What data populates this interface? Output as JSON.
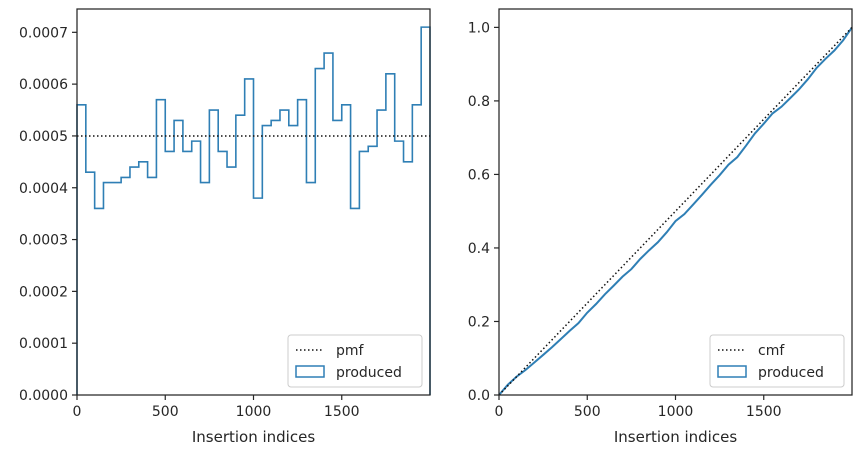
{
  "colors": {
    "produced": "#2f7fb5",
    "reference": "#111111",
    "axes": "#262626",
    "legend_border": "#cccccc"
  },
  "chart_data": [
    {
      "type": "line",
      "subtype": "step-histogram",
      "xlabel": "Insertion indices",
      "ylabel": "",
      "xlim": [
        0,
        2000
      ],
      "ylim": [
        0,
        0.000745
      ],
      "xticks": [
        0,
        500,
        1000,
        1500
      ],
      "xtick_labels": [
        "0",
        "500",
        "1000",
        "1500"
      ],
      "yticks": [
        0,
        0.0001,
        0.0002,
        0.0003,
        0.0004,
        0.0005,
        0.0006,
        0.0007
      ],
      "ytick_labels": [
        "0.0000",
        "0.0001",
        "0.0002",
        "0.0003",
        "0.0004",
        "0.0005",
        "0.0006",
        "0.0007"
      ],
      "grid": false,
      "legend_position": "lower-right",
      "series": [
        {
          "name": "pmf",
          "style": "dotted",
          "color": "#111111",
          "x": [
            0,
            2000
          ],
          "y": [
            0.0005,
            0.0005
          ]
        },
        {
          "name": "produced",
          "style": "step",
          "color": "#2f7fb5",
          "bin_edges": [
            0,
            50,
            100,
            150,
            200,
            250,
            300,
            350,
            400,
            450,
            500,
            550,
            600,
            650,
            700,
            750,
            800,
            850,
            900,
            950,
            1000,
            1050,
            1100,
            1150,
            1200,
            1250,
            1300,
            1350,
            1400,
            1450,
            1500,
            1550,
            1600,
            1650,
            1700,
            1750,
            1800,
            1850,
            1900,
            1950,
            2000
          ],
          "values": [
            0.00056,
            0.00043,
            0.00036,
            0.00041,
            0.00041,
            0.00042,
            0.00044,
            0.00045,
            0.00042,
            0.00057,
            0.00047,
            0.00053,
            0.00047,
            0.00049,
            0.00041,
            0.00055,
            0.00047,
            0.00044,
            0.00054,
            0.00061,
            0.00038,
            0.00052,
            0.00053,
            0.00055,
            0.00052,
            0.00057,
            0.00041,
            0.00063,
            0.00066,
            0.00053,
            0.00056,
            0.00036,
            0.00047,
            0.00048,
            0.00055,
            0.00062,
            0.00049,
            0.00045,
            0.00056,
            0.00071
          ]
        }
      ],
      "legend": [
        "pmf",
        "produced"
      ]
    },
    {
      "type": "line",
      "subtype": "cumulative",
      "xlabel": "Insertion indices",
      "ylabel": "",
      "xlim": [
        0,
        2000
      ],
      "ylim": [
        0,
        1.05
      ],
      "xticks": [
        0,
        500,
        1000,
        1500
      ],
      "xtick_labels": [
        "0",
        "500",
        "1000",
        "1500"
      ],
      "yticks": [
        0,
        0.2,
        0.4,
        0.6,
        0.8,
        1.0
      ],
      "ytick_labels": [
        "0.0",
        "0.2",
        "0.4",
        "0.6",
        "0.8",
        "1.0"
      ],
      "grid": false,
      "legend_position": "lower-right",
      "series": [
        {
          "name": "cmf",
          "style": "dotted",
          "color": "#111111",
          "x": [
            0,
            2000
          ],
          "y": [
            0,
            1.0
          ]
        },
        {
          "name": "produced",
          "style": "step",
          "color": "#2f7fb5",
          "x": [
            0,
            50,
            100,
            150,
            200,
            250,
            300,
            350,
            400,
            450,
            500,
            550,
            600,
            650,
            700,
            750,
            800,
            850,
            900,
            950,
            1000,
            1050,
            1100,
            1150,
            1200,
            1250,
            1300,
            1350,
            1400,
            1450,
            1500,
            1550,
            1600,
            1650,
            1700,
            1750,
            1800,
            1850,
            1900,
            1950,
            2000
          ],
          "y": [
            0,
            0.028,
            0.05,
            0.068,
            0.0885,
            0.109,
            0.13,
            0.152,
            0.1745,
            0.1955,
            0.224,
            0.2475,
            0.274,
            0.2975,
            0.322,
            0.3425,
            0.37,
            0.3935,
            0.4155,
            0.4425,
            0.473,
            0.492,
            0.518,
            0.5445,
            0.572,
            0.598,
            0.6265,
            0.647,
            0.6785,
            0.7115,
            0.738,
            0.766,
            0.784,
            0.8075,
            0.8315,
            0.859,
            0.89,
            0.9145,
            0.937,
            0.965,
            1.0
          ]
        }
      ],
      "legend": [
        "cmf",
        "produced"
      ]
    }
  ]
}
